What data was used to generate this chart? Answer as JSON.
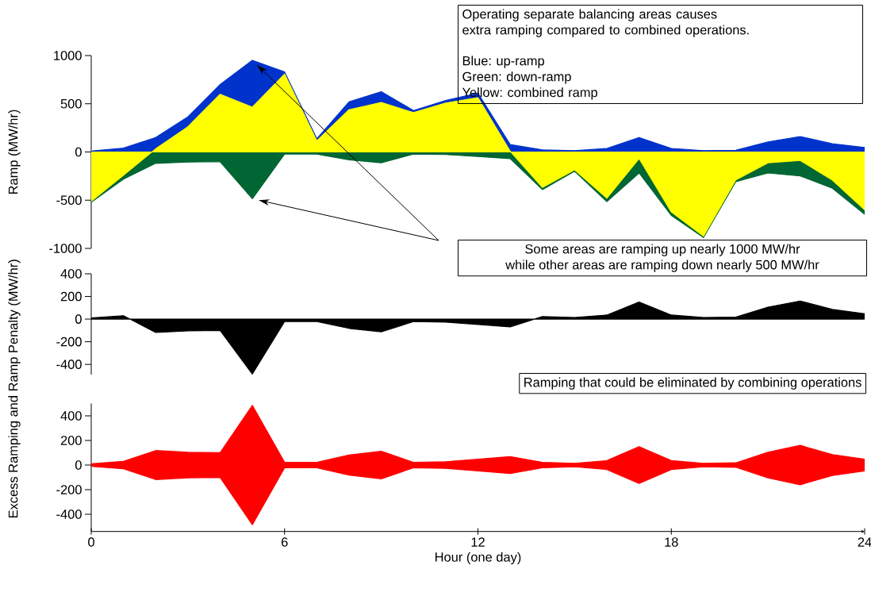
{
  "chart_data": [
    {
      "type": "area",
      "ylabel": "Ramp (MW/hr)",
      "x": [
        0,
        1,
        2,
        3,
        4,
        5,
        6,
        7,
        8,
        9,
        10,
        11,
        12,
        13,
        14,
        15,
        16,
        17,
        18,
        19,
        20,
        21,
        22,
        23,
        24
      ],
      "xlim": [
        0,
        24
      ],
      "ylim": [
        -1000,
        1000
      ],
      "yticks": [
        -1000,
        -500,
        0,
        500,
        1000
      ],
      "tick_labels": "y",
      "series": [
        {
          "color": "#0033cc",
          "values": [
            10,
            40,
            150,
            365,
            700,
            950,
            830,
            137,
            520,
            625,
            430,
            535,
            610,
            77,
            22,
            14,
            36,
            150,
            36,
            14,
            18,
            105,
            160,
            85,
            47
          ]
        },
        {
          "color": "#006633",
          "values": [
            -520,
            -282,
            -118,
            -104,
            -101,
            -485,
            -22,
            -22,
            -82,
            -112,
            -22,
            -27,
            -47,
            -69,
            -390,
            -200,
            -515,
            -218,
            -658,
            -887,
            -308,
            -218,
            -248,
            -377,
            -647
          ]
        },
        {
          "color": "#ffff00",
          "values": [
            -510,
            -242,
            32,
            261,
            599,
            465,
            808,
            115,
            438,
            513,
            408,
            508,
            563,
            8,
            -368,
            -186,
            -479,
            -68,
            -622,
            -873,
            -290,
            -113,
            -88,
            -292,
            -600
          ]
        }
      ],
      "annotations": [
        "Operating separate balancing areas causes",
        "extra ramping compared to combined operations.",
        "Blue: up-ramp",
        "Green: down-ramp",
        "Yellow: combined ramp",
        "Some areas are ramping up nearly 1000 MW/hr",
        "while other areas are ramping down nearly 500 MW/hr"
      ]
    },
    {
      "type": "area",
      "ylabel": "Excess Ramping and Ramp Penalty (MW/hr)",
      "x": [
        0,
        1,
        2,
        3,
        4,
        5,
        6,
        7,
        8,
        9,
        10,
        11,
        12,
        13,
        14,
        15,
        16,
        17,
        18,
        19,
        20,
        21,
        22,
        23,
        24
      ],
      "xlim": [
        0,
        24
      ],
      "ylim": [
        -490,
        400
      ],
      "yticks": [
        -400,
        -200,
        0,
        200,
        400
      ],
      "tick_labels": "y",
      "series": [
        {
          "color": "#000000",
          "values": [
            10,
            30,
            -118,
            -104,
            -101,
            -485,
            -22,
            -22,
            -82,
            -112,
            -22,
            -27,
            -47,
            -69,
            22,
            14,
            36,
            150,
            36,
            14,
            18,
            105,
            160,
            85,
            47
          ]
        }
      ]
    },
    {
      "type": "area",
      "xlabel": "Hour (one day)",
      "x": [
        0,
        1,
        2,
        3,
        4,
        5,
        6,
        7,
        8,
        9,
        10,
        11,
        12,
        13,
        14,
        15,
        16,
        17,
        18,
        19,
        20,
        21,
        22,
        23,
        24
      ],
      "xlim": [
        0,
        24
      ],
      "xticks": [
        0,
        6,
        12,
        18,
        24
      ],
      "ylim": [
        -540,
        500
      ],
      "yticks": [
        -400,
        -200,
        0,
        200,
        400
      ],
      "series": [
        {
          "color": "#ff0000",
          "values": [
            10,
            30,
            118,
            104,
            101,
            485,
            22,
            22,
            82,
            112,
            22,
            27,
            47,
            69,
            22,
            14,
            36,
            150,
            36,
            14,
            18,
            105,
            160,
            85,
            47
          ]
        },
        {
          "color": "#ff0000",
          "values": [
            -10,
            -30,
            -118,
            -104,
            -101,
            -485,
            -22,
            -22,
            -82,
            -112,
            -22,
            -27,
            -47,
            -69,
            -22,
            -14,
            -36,
            -150,
            -36,
            -14,
            -18,
            -105,
            -160,
            -85,
            -47
          ]
        }
      ],
      "annotations": [
        "Ramping that could be eliminated by combining operations"
      ]
    }
  ]
}
